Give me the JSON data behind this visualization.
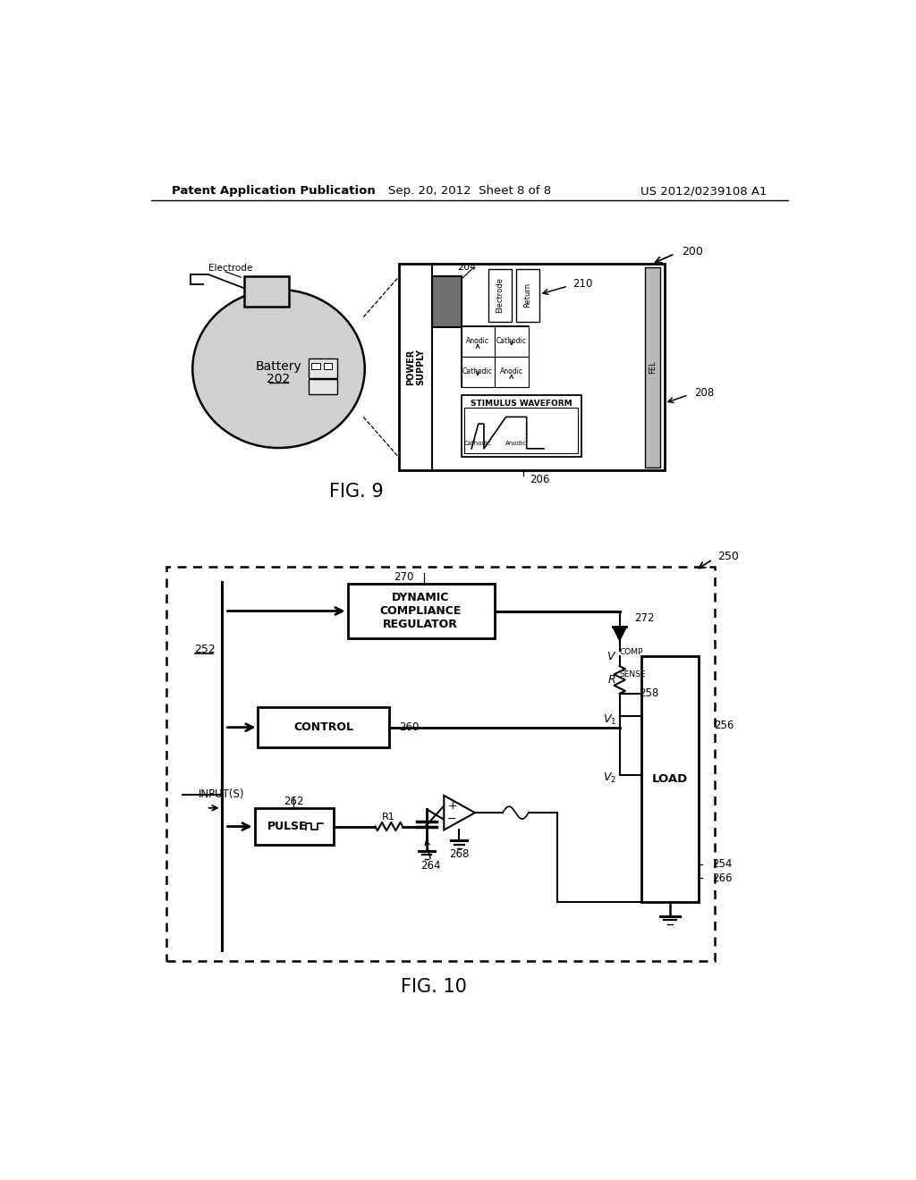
{
  "bg_color": "#ffffff",
  "header_left": "Patent Application Publication",
  "header_mid": "Sep. 20, 2012  Sheet 8 of 8",
  "header_right": "US 2012/0239108 A1",
  "fig9_label": "FIG. 9",
  "fig10_label": "FIG. 10",
  "line_color": "#000000",
  "fill_gray_light": "#c8c8c8",
  "fill_gray_med": "#909090",
  "fill_dark": "#404040"
}
